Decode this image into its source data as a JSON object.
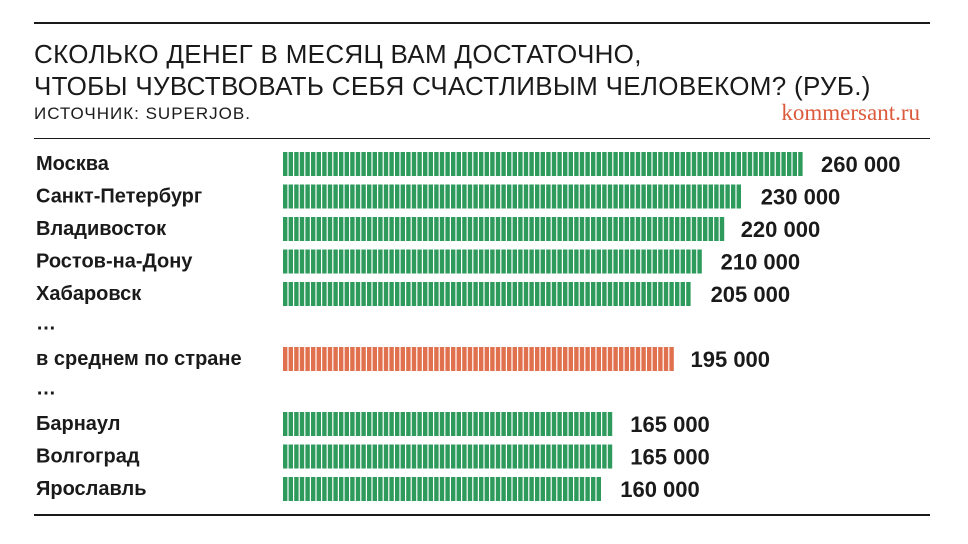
{
  "title": {
    "line1": "СКОЛЬКО ДЕНЕГ В МЕСЯЦ ВАМ ДОСТАТОЧНО,",
    "line2": "ЧТОБЫ ЧУВСТВОВАТЬ СЕБЯ СЧАСТЛИВЫМ ЧЕЛОВЕКОМ? (РУБ.)"
  },
  "source": "ИСТОЧНИК: SUPERJOB.",
  "brand": "kommersant.ru",
  "colors": {
    "normal": "#2e9a5c",
    "highlight": "#e0704e"
  },
  "chart_data": {
    "type": "bar",
    "orientation": "horizontal",
    "rows": [
      {
        "category": "Москва",
        "value": 260000,
        "label": "260 000",
        "highlight": false
      },
      {
        "category": "Санкт-Петербург",
        "value": 230000,
        "label": "230 000",
        "highlight": false
      },
      {
        "category": "Владивосток",
        "value": 220000,
        "label": "220 000",
        "highlight": false
      },
      {
        "category": "Ростов-на-Дону",
        "value": 210000,
        "label": "210 000",
        "highlight": false
      },
      {
        "category": "Хабаровск",
        "value": 205000,
        "label": "205 000",
        "highlight": false
      },
      {
        "gap": true,
        "text": "…"
      },
      {
        "category": "в среднем по стране",
        "value": 195000,
        "label": "195 000",
        "highlight": true
      },
      {
        "gap": true,
        "text": "…"
      },
      {
        "category": "Барнаул",
        "value": 165000,
        "label": "165 000",
        "highlight": false
      },
      {
        "category": "Волгоград",
        "value": 165000,
        "label": "165 000",
        "highlight": false
      },
      {
        "category": "Ярославль",
        "value": 160000,
        "label": "160 000",
        "highlight": false
      }
    ]
  }
}
